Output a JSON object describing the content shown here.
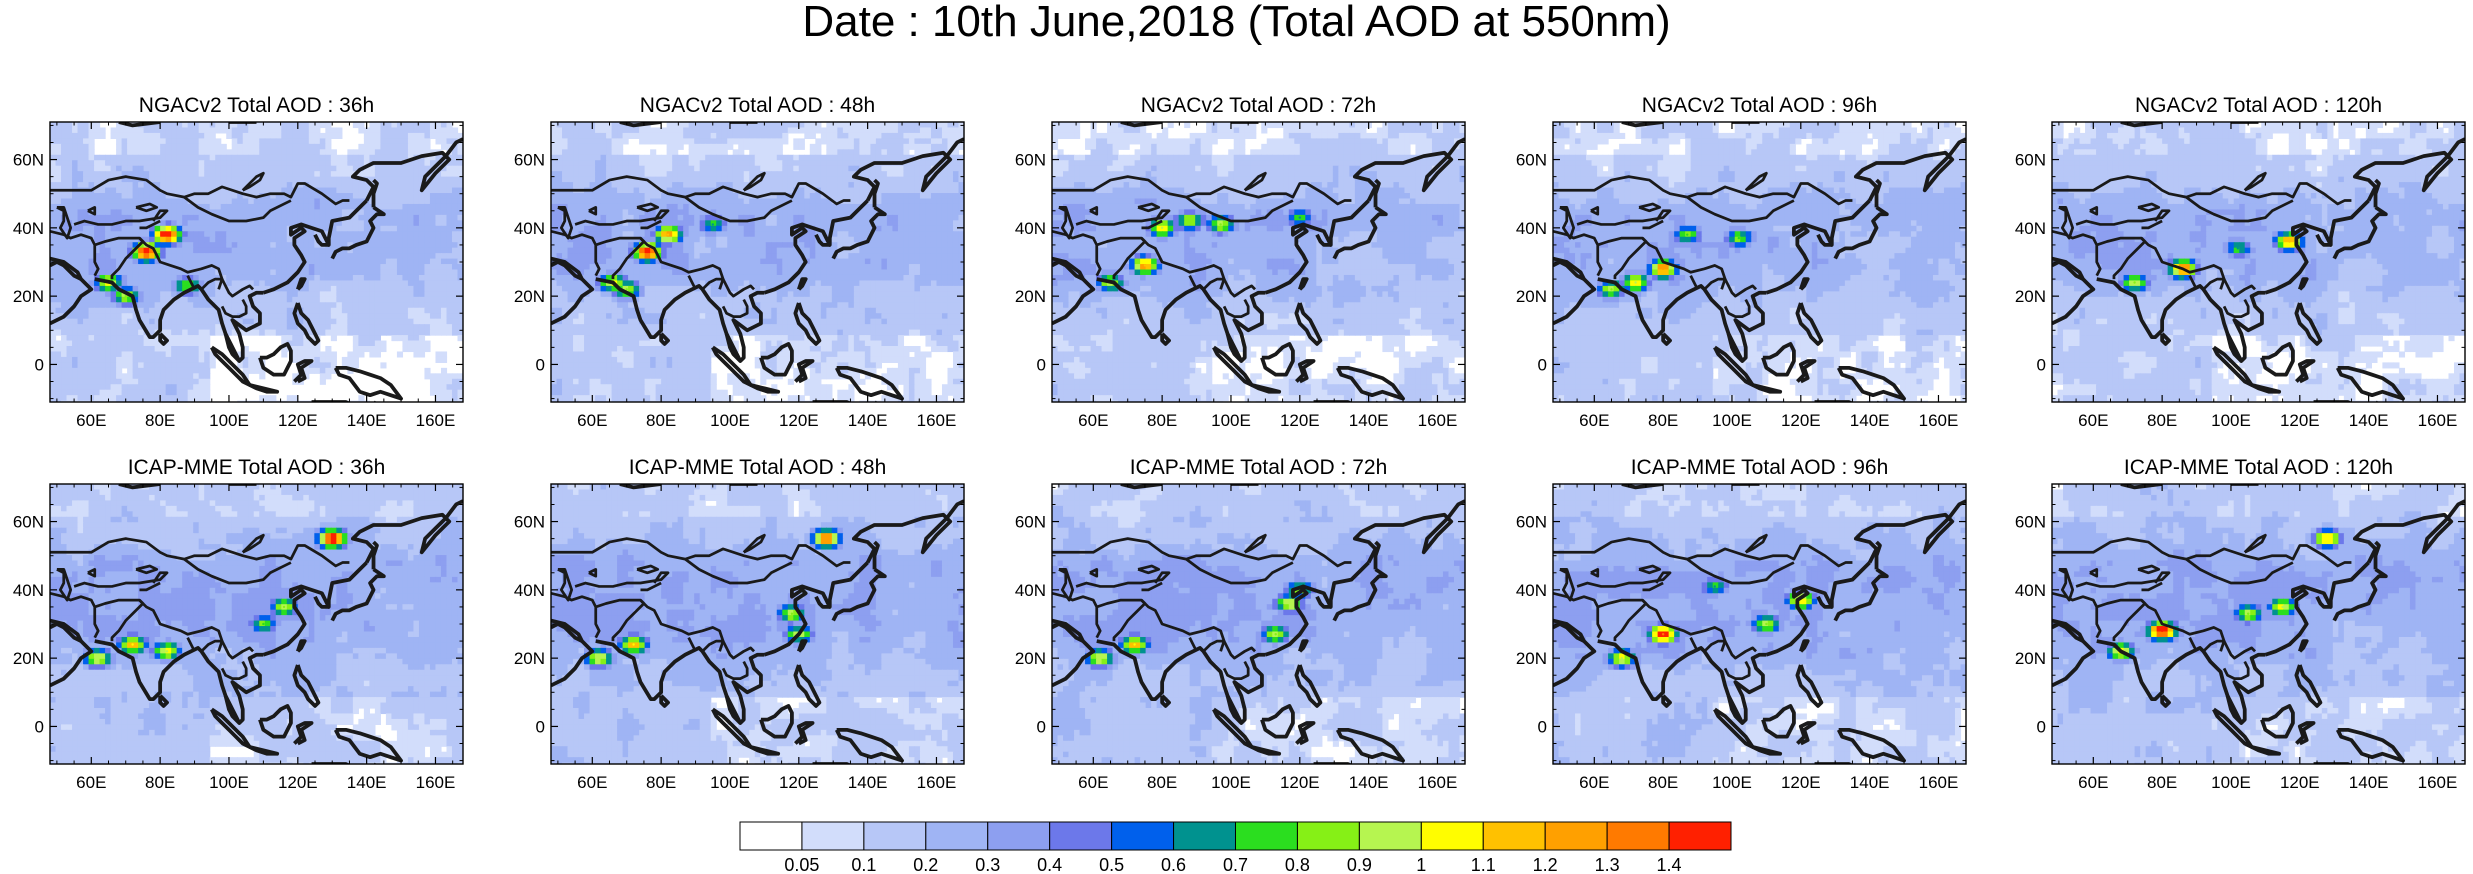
{
  "title": "Date : 10th June,2018 (Total AOD at 550nm)",
  "chart_data": {
    "type": "heatmap",
    "title": "Date : 10th June,2018 (Total AOD at 550nm)",
    "lon_range": [
      48,
      168
    ],
    "lat_range": [
      -11,
      71
    ],
    "x_ticks": [
      "60E",
      "80E",
      "100E",
      "120E",
      "140E",
      "160E"
    ],
    "y_ticks": [
      "0",
      "20N",
      "40N",
      "60N"
    ],
    "grid": false,
    "legend": "bottom",
    "colorbar": {
      "levels": [
        "0.05",
        "0.1",
        "0.2",
        "0.3",
        "0.4",
        "0.5",
        "0.6",
        "0.7",
        "0.8",
        "0.9",
        "1",
        "1.1",
        "1.2",
        "1.3",
        "1.4"
      ],
      "colors": [
        "#ffffff",
        "#d2ddfb",
        "#b7c7f7",
        "#9fb4f4",
        "#8d9ff0",
        "#6c78ea",
        "#0060ec",
        "#00928f",
        "#2bde1f",
        "#86f016",
        "#b6f550",
        "#fffd00",
        "#ffc100",
        "#ffa000",
        "#ff7a00",
        "#ff2000"
      ]
    },
    "panels": [
      {
        "title": "NGACv2 Total AOD : 36h",
        "model": "NGACv2",
        "lead": "36h",
        "row": 0,
        "col": 0,
        "hotspots": [
          {
            "lon": 82,
            "lat": 38,
            "aod": 1.4
          },
          {
            "lon": 76,
            "lat": 33,
            "aod": 1.4
          },
          {
            "lon": 65,
            "lat": 24,
            "aod": 0.9
          },
          {
            "lon": 70,
            "lat": 20,
            "aod": 0.8
          },
          {
            "lon": 88,
            "lat": 23,
            "aod": 0.7
          }
        ]
      },
      {
        "title": "NGACv2 Total AOD : 48h",
        "model": "NGACv2",
        "lead": "48h",
        "row": 0,
        "col": 1,
        "hotspots": [
          {
            "lon": 76,
            "lat": 33,
            "aod": 1.4
          },
          {
            "lon": 82,
            "lat": 38,
            "aod": 1.1
          },
          {
            "lon": 66,
            "lat": 24,
            "aod": 0.9
          },
          {
            "lon": 70,
            "lat": 22,
            "aod": 0.8
          },
          {
            "lon": 95,
            "lat": 41,
            "aod": 0.6
          }
        ]
      },
      {
        "title": "NGACv2 Total AOD : 72h",
        "model": "NGACv2",
        "lead": "72h",
        "row": 0,
        "col": 2,
        "hotspots": [
          {
            "lon": 75,
            "lat": 29,
            "aod": 1.1
          },
          {
            "lon": 80,
            "lat": 40,
            "aod": 0.9
          },
          {
            "lon": 88,
            "lat": 42,
            "aod": 0.8
          },
          {
            "lon": 97,
            "lat": 41,
            "aod": 0.8
          },
          {
            "lon": 65,
            "lat": 24,
            "aod": 0.8
          },
          {
            "lon": 120,
            "lat": 43,
            "aod": 0.6
          }
        ]
      },
      {
        "title": "NGACv2 Total AOD : 96h",
        "model": "NGACv2",
        "lead": "96h",
        "row": 0,
        "col": 3,
        "hotspots": [
          {
            "lon": 80,
            "lat": 28,
            "aod": 1.2
          },
          {
            "lon": 72,
            "lat": 24,
            "aod": 0.9
          },
          {
            "lon": 87,
            "lat": 38,
            "aod": 0.7
          },
          {
            "lon": 102,
            "lat": 37,
            "aod": 0.7
          },
          {
            "lon": 65,
            "lat": 22,
            "aod": 0.8
          }
        ]
      },
      {
        "title": "NGACv2 Total AOD : 120h",
        "model": "NGACv2",
        "lead": "120h",
        "row": 0,
        "col": 4,
        "hotspots": [
          {
            "lon": 86,
            "lat": 28,
            "aod": 1.2
          },
          {
            "lon": 117,
            "lat": 36,
            "aod": 1.1
          },
          {
            "lon": 72,
            "lat": 24,
            "aod": 0.8
          },
          {
            "lon": 102,
            "lat": 34,
            "aod": 0.6
          }
        ]
      },
      {
        "title": "ICAP-MME Total AOD : 36h",
        "model": "ICAP-MME",
        "lead": "36h",
        "row": 1,
        "col": 0,
        "hotspots": [
          {
            "lon": 72,
            "lat": 24,
            "aod": 1.0
          },
          {
            "lon": 62,
            "lat": 20,
            "aod": 0.9
          },
          {
            "lon": 82,
            "lat": 22,
            "aod": 0.9
          },
          {
            "lon": 116,
            "lat": 35,
            "aod": 0.8
          },
          {
            "lon": 110,
            "lat": 30,
            "aod": 0.7
          },
          {
            "lon": 130,
            "lat": 55,
            "aod": 1.4
          }
        ]
      },
      {
        "title": "ICAP-MME Total AOD : 48h",
        "model": "ICAP-MME",
        "lead": "48h",
        "row": 1,
        "col": 1,
        "hotspots": [
          {
            "lon": 72,
            "lat": 24,
            "aod": 1.0
          },
          {
            "lon": 62,
            "lat": 20,
            "aod": 0.9
          },
          {
            "lon": 118,
            "lat": 33,
            "aod": 0.8
          },
          {
            "lon": 120,
            "lat": 27,
            "aod": 0.8
          },
          {
            "lon": 128,
            "lat": 55,
            "aod": 1.2
          }
        ]
      },
      {
        "title": "ICAP-MME Total AOD : 72h",
        "model": "ICAP-MME",
        "lead": "72h",
        "row": 1,
        "col": 2,
        "hotspots": [
          {
            "lon": 72,
            "lat": 24,
            "aod": 1.0
          },
          {
            "lon": 62,
            "lat": 20,
            "aod": 0.9
          },
          {
            "lon": 117,
            "lat": 36,
            "aod": 0.9
          },
          {
            "lon": 113,
            "lat": 27,
            "aod": 0.8
          },
          {
            "lon": 120,
            "lat": 40,
            "aod": 0.7
          }
        ]
      },
      {
        "title": "ICAP-MME Total AOD : 96h",
        "model": "ICAP-MME",
        "lead": "96h",
        "row": 1,
        "col": 3,
        "hotspots": [
          {
            "lon": 80,
            "lat": 27,
            "aod": 1.3
          },
          {
            "lon": 68,
            "lat": 20,
            "aod": 0.9
          },
          {
            "lon": 120,
            "lat": 37,
            "aod": 1.0
          },
          {
            "lon": 110,
            "lat": 30,
            "aod": 0.8
          },
          {
            "lon": 95,
            "lat": 41,
            "aod": 0.6
          }
        ]
      },
      {
        "title": "ICAP-MME Total AOD : 120h",
        "model": "ICAP-MME",
        "lead": "120h",
        "row": 1,
        "col": 4,
        "hotspots": [
          {
            "lon": 80,
            "lat": 28,
            "aod": 1.4
          },
          {
            "lon": 68,
            "lat": 22,
            "aod": 0.9
          },
          {
            "lon": 115,
            "lat": 35,
            "aod": 0.9
          },
          {
            "lon": 105,
            "lat": 33,
            "aod": 0.8
          },
          {
            "lon": 128,
            "lat": 55,
            "aod": 1.0
          }
        ]
      }
    ]
  }
}
